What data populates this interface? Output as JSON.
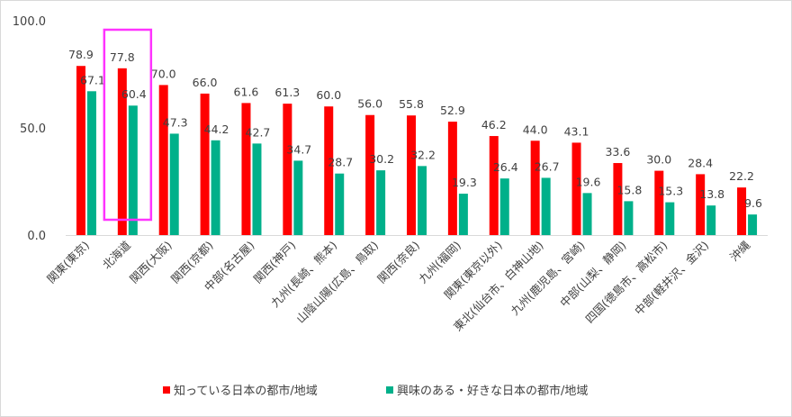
{
  "chart_data": {
    "type": "bar",
    "ylim": [
      0,
      100
    ],
    "yticks": [
      "0.0",
      "50.0",
      "100.0"
    ],
    "grid": false,
    "legend_position": "bottom",
    "categories": [
      "関東(東京)",
      "北海道",
      "関西(大阪)",
      "関西(京都)",
      "中部(名古屋)",
      "関西(神戸)",
      "九州(長崎、熊本)",
      "山陰山陽(広島、鳥取)",
      "関西(奈良)",
      "九州(福岡)",
      "関東(東京以外)",
      "東北(仙台市、白神山地)",
      "九州(鹿児島、宮崎)",
      "中部(山梨、静岡)",
      "四国(徳島市、高松市)",
      "中部(軽井沢、金沢)",
      "沖縄"
    ],
    "series": [
      {
        "name": "知っている日本の都市/地域",
        "color": "#ff0000",
        "values": [
          78.9,
          77.8,
          70.0,
          66.0,
          61.6,
          61.3,
          60.0,
          56.0,
          55.8,
          52.9,
          46.2,
          44.0,
          43.1,
          33.6,
          30.0,
          28.4,
          22.2
        ],
        "labels": [
          "78.9",
          "77.8",
          "70.0",
          "66.0",
          "61.6",
          "61.3",
          "60.0",
          "56.0",
          "55.8",
          "52.9",
          "46.2",
          "44.0",
          "43.1",
          "33.6",
          "30.0",
          "28.4",
          "22.2"
        ]
      },
      {
        "name": "興味のある・好きな日本の都市/地域",
        "color": "#00b08a",
        "values": [
          67.1,
          60.4,
          47.3,
          44.2,
          42.7,
          34.7,
          28.7,
          30.2,
          32.2,
          19.3,
          26.4,
          26.7,
          19.6,
          15.8,
          15.3,
          13.8,
          9.6
        ],
        "labels": [
          "67.1",
          "60.4",
          "47.3",
          "44.2",
          "42.7",
          "34.7",
          "28.7",
          "30.2",
          "32.2",
          "19.3",
          "26.4",
          "26.7",
          "19.6",
          "15.8",
          "15.3",
          "13.8",
          "9.6"
        ]
      }
    ],
    "highlight": {
      "category_index": 1,
      "color": "#ff33ff"
    }
  }
}
